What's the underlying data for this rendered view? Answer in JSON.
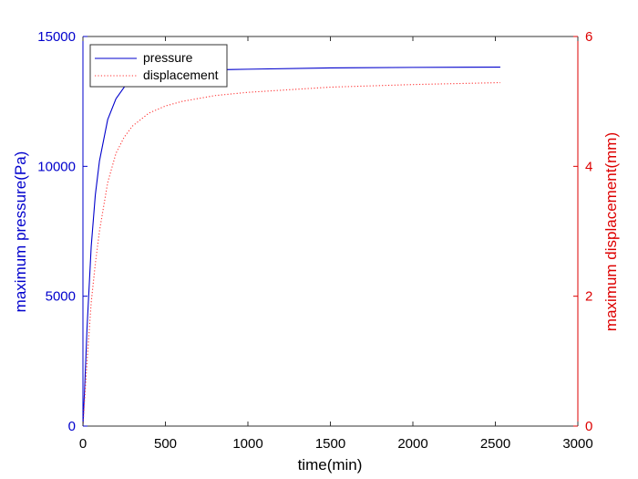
{
  "chart_data": {
    "type": "line",
    "xlabel": "time(min)",
    "ylabel_left": "maximum pressure(Pa)",
    "ylabel_right": "maximum displacement(mm)",
    "xlim": [
      0,
      3000
    ],
    "ylim_left": [
      0,
      15000
    ],
    "ylim_right": [
      0,
      6
    ],
    "x_ticks": [
      0,
      500,
      1000,
      1500,
      2000,
      2500,
      3000
    ],
    "y_left_ticks": [
      0,
      5000,
      10000,
      15000
    ],
    "y_right_ticks": [
      0,
      2,
      4,
      6
    ],
    "grid": false,
    "legend_position": "top-left",
    "colors": {
      "left_axis": "#0000cc",
      "right_axis": "#dd0000",
      "pressure_line": "#0000cc",
      "displacement_line": "#ff3333",
      "frame": "#333333"
    },
    "series": [
      {
        "name": "pressure",
        "axis": "left",
        "style": "solid",
        "x": [
          0,
          10,
          25,
          50,
          75,
          100,
          150,
          200,
          250,
          300,
          350,
          400,
          500,
          600,
          800,
          1000,
          1500,
          2000,
          2530
        ],
        "values": [
          0,
          1400,
          3800,
          6900,
          8900,
          10200,
          11800,
          12600,
          13050,
          13300,
          13450,
          13550,
          13640,
          13680,
          13720,
          13740,
          13790,
          13810,
          13820
        ]
      },
      {
        "name": "displacement",
        "axis": "right",
        "style": "dotted",
        "x": [
          0,
          10,
          25,
          50,
          75,
          100,
          150,
          200,
          250,
          300,
          400,
          500,
          600,
          800,
          1000,
          1500,
          2000,
          2530
        ],
        "values": [
          0,
          0.4,
          1.0,
          1.9,
          2.5,
          3.0,
          3.75,
          4.2,
          4.45,
          4.62,
          4.82,
          4.93,
          5.0,
          5.09,
          5.14,
          5.22,
          5.26,
          5.29
        ]
      }
    ]
  }
}
